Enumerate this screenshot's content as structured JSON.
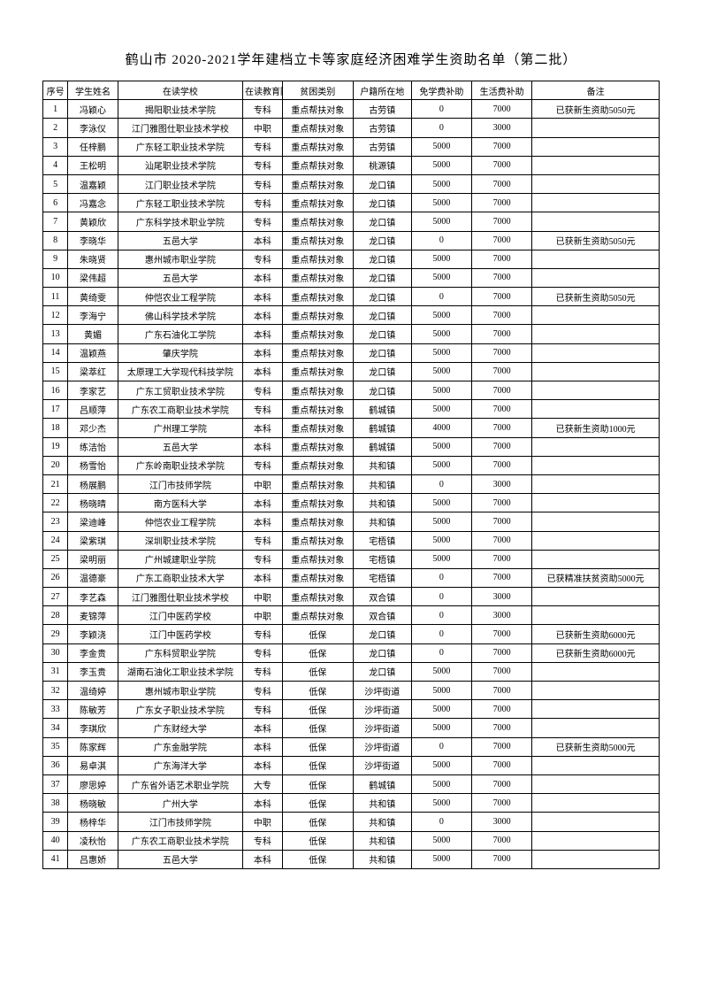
{
  "title": "鹤山市 2020-2021学年建档立卡等家庭经济困难学生资助名单（第二批）",
  "columns": [
    "序号",
    "学生姓名",
    "在读学校",
    "在读教育阶段",
    "贫困类别",
    "户籍所在地",
    "免学费补助",
    "生活费补助",
    "备注"
  ],
  "rows": [
    [
      "1",
      "冯颖心",
      "揭阳职业技术学院",
      "专科",
      "重点帮扶对象",
      "古劳镇",
      "0",
      "7000",
      "已获新生资助5050元"
    ],
    [
      "2",
      "李泳仪",
      "江门雅图仕职业技术学校",
      "中职",
      "重点帮扶对象",
      "古劳镇",
      "0",
      "3000",
      ""
    ],
    [
      "3",
      "任梓鹏",
      "广东轻工职业技术学院",
      "专科",
      "重点帮扶对象",
      "古劳镇",
      "5000",
      "7000",
      ""
    ],
    [
      "4",
      "王松明",
      "汕尾职业技术学院",
      "专科",
      "重点帮扶对象",
      "桃源镇",
      "5000",
      "7000",
      ""
    ],
    [
      "5",
      "温嘉颖",
      "江门职业技术学院",
      "专科",
      "重点帮扶对象",
      "龙口镇",
      "5000",
      "7000",
      ""
    ],
    [
      "6",
      "冯嘉念",
      "广东轻工职业技术学院",
      "专科",
      "重点帮扶对象",
      "龙口镇",
      "5000",
      "7000",
      ""
    ],
    [
      "7",
      "黄颖欣",
      "广东科学技术职业学院",
      "专科",
      "重点帮扶对象",
      "龙口镇",
      "5000",
      "7000",
      ""
    ],
    [
      "8",
      "李晓华",
      "五邑大学",
      "本科",
      "重点帮扶对象",
      "龙口镇",
      "0",
      "7000",
      "已获新生资助5050元"
    ],
    [
      "9",
      "朱晓贤",
      "惠州城市职业学院",
      "专科",
      "重点帮扶对象",
      "龙口镇",
      "5000",
      "7000",
      ""
    ],
    [
      "10",
      "梁伟超",
      "五邑大学",
      "本科",
      "重点帮扶对象",
      "龙口镇",
      "5000",
      "7000",
      ""
    ],
    [
      "11",
      "黄绮雯",
      "仲恺农业工程学院",
      "本科",
      "重点帮扶对象",
      "龙口镇",
      "0",
      "7000",
      "已获新生资助5050元"
    ],
    [
      "12",
      "李海宁",
      "佛山科学技术学院",
      "本科",
      "重点帮扶对象",
      "龙口镇",
      "5000",
      "7000",
      ""
    ],
    [
      "13",
      "黄媚",
      "广东石油化工学院",
      "本科",
      "重点帮扶对象",
      "龙口镇",
      "5000",
      "7000",
      ""
    ],
    [
      "14",
      "温颖燕",
      "肇庆学院",
      "本科",
      "重点帮扶对象",
      "龙口镇",
      "5000",
      "7000",
      ""
    ],
    [
      "15",
      "梁萃红",
      "太原理工大学现代科技学院",
      "本科",
      "重点帮扶对象",
      "龙口镇",
      "5000",
      "7000",
      ""
    ],
    [
      "16",
      "李家艺",
      "广东工贸职业技术学院",
      "专科",
      "重点帮扶对象",
      "龙口镇",
      "5000",
      "7000",
      ""
    ],
    [
      "17",
      "吕顺萍",
      "广东农工商职业技术学院",
      "专科",
      "重点帮扶对象",
      "鹤城镇",
      "5000",
      "7000",
      ""
    ],
    [
      "18",
      "邓少杰",
      "广州理工学院",
      "本科",
      "重点帮扶对象",
      "鹤城镇",
      "4000",
      "7000",
      "已获新生资助1000元"
    ],
    [
      "19",
      "练洁怡",
      "五邑大学",
      "本科",
      "重点帮扶对象",
      "鹤城镇",
      "5000",
      "7000",
      ""
    ],
    [
      "20",
      "杨雪怡",
      "广东岭南职业技术学院",
      "专科",
      "重点帮扶对象",
      "共和镇",
      "5000",
      "7000",
      ""
    ],
    [
      "21",
      "杨展鹏",
      "江门市技师学院",
      "中职",
      "重点帮扶对象",
      "共和镇",
      "0",
      "3000",
      ""
    ],
    [
      "22",
      "杨晓晴",
      "南方医科大学",
      "本科",
      "重点帮扶对象",
      "共和镇",
      "5000",
      "7000",
      ""
    ],
    [
      "23",
      "梁迪峰",
      "仲恺农业工程学院",
      "本科",
      "重点帮扶对象",
      "共和镇",
      "5000",
      "7000",
      ""
    ],
    [
      "24",
      "梁紫琪",
      "深圳职业技术学院",
      "专科",
      "重点帮扶对象",
      "宅梧镇",
      "5000",
      "7000",
      ""
    ],
    [
      "25",
      "梁明丽",
      "广州城建职业学院",
      "专科",
      "重点帮扶对象",
      "宅梧镇",
      "5000",
      "7000",
      ""
    ],
    [
      "26",
      "温德豪",
      "广东工商职业技术大学",
      "本科",
      "重点帮扶对象",
      "宅梧镇",
      "0",
      "7000",
      "已获精准扶贫资助5000元"
    ],
    [
      "27",
      "李艺森",
      "江门雅图仕职业技术学校",
      "中职",
      "重点帮扶对象",
      "双合镇",
      "0",
      "3000",
      ""
    ],
    [
      "28",
      "麦锦萍",
      "江门中医药学校",
      "中职",
      "重点帮扶对象",
      "双合镇",
      "0",
      "3000",
      ""
    ],
    [
      "29",
      "李颖浇",
      "江门中医药学校",
      "专科",
      "低保",
      "龙口镇",
      "0",
      "7000",
      "已获新生资助6000元"
    ],
    [
      "30",
      "李金贵",
      "广东科贸职业学院",
      "专科",
      "低保",
      "龙口镇",
      "0",
      "7000",
      "已获新生资助6000元"
    ],
    [
      "31",
      "李玉贵",
      "湖南石油化工职业技术学院",
      "专科",
      "低保",
      "龙口镇",
      "5000",
      "7000",
      ""
    ],
    [
      "32",
      "温绮婷",
      "惠州城市职业学院",
      "专科",
      "低保",
      "沙坪街道",
      "5000",
      "7000",
      ""
    ],
    [
      "33",
      "陈敏芳",
      "广东女子职业技术学院",
      "专科",
      "低保",
      "沙坪街道",
      "5000",
      "7000",
      ""
    ],
    [
      "34",
      "李琪欣",
      "广东财经大学",
      "本科",
      "低保",
      "沙坪街道",
      "5000",
      "7000",
      ""
    ],
    [
      "35",
      "陈家辉",
      "广东金融学院",
      "本科",
      "低保",
      "沙坪街道",
      "0",
      "7000",
      "已获新生资助5000元"
    ],
    [
      "36",
      "易卓淇",
      "广东海洋大学",
      "本科",
      "低保",
      "沙坪街道",
      "5000",
      "7000",
      ""
    ],
    [
      "37",
      "廖思婷",
      "广东省外语艺术职业学院",
      "大专",
      "低保",
      "鹤城镇",
      "5000",
      "7000",
      ""
    ],
    [
      "38",
      "杨晓敏",
      "广州大学",
      "本科",
      "低保",
      "共和镇",
      "5000",
      "7000",
      ""
    ],
    [
      "39",
      "杨梓华",
      "江门市技师学院",
      "中职",
      "低保",
      "共和镇",
      "0",
      "3000",
      ""
    ],
    [
      "40",
      "凌秋怡",
      "广东农工商职业技术学院",
      "专科",
      "低保",
      "共和镇",
      "5000",
      "7000",
      ""
    ],
    [
      "41",
      "吕惠娇",
      "五邑大学",
      "本科",
      "低保",
      "共和镇",
      "5000",
      "7000",
      ""
    ]
  ]
}
